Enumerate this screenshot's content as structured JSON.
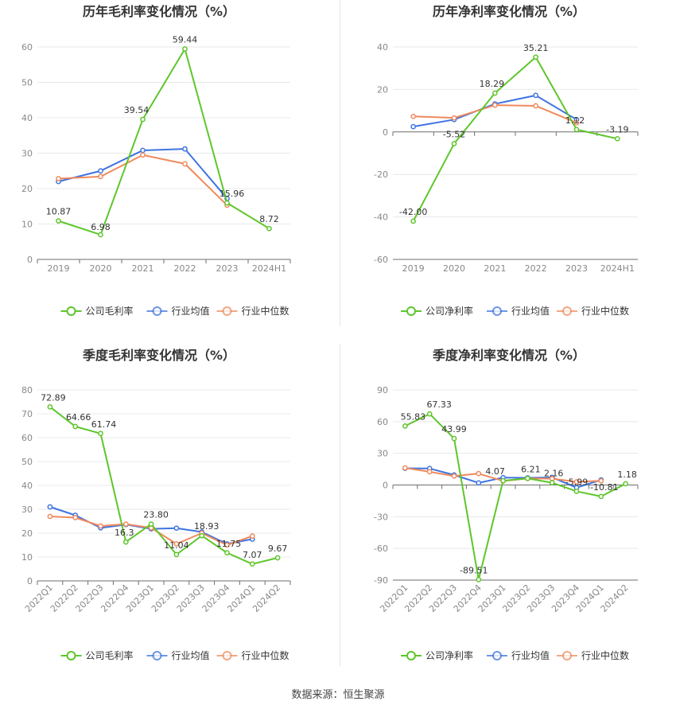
{
  "colors": {
    "company": "#5ec62b",
    "industry_avg": "#3f74e0",
    "industry_median": "#f08a5d",
    "grid": "#e8e8e8",
    "axis_text": "#888888"
  },
  "footer": {
    "label": "数据来源：",
    "value": "恒生聚源"
  },
  "chart_data": [
    {
      "type": "line",
      "title": "历年毛利率变化情况（%）",
      "categories": [
        "2019",
        "2020",
        "2021",
        "2022",
        "2023",
        "2024H1"
      ],
      "yticks": [
        "0",
        "10",
        "20",
        "30",
        "40",
        "50",
        "60"
      ],
      "ylim": [
        0,
        60
      ],
      "series": [
        {
          "name": "公司毛利率",
          "key": "company",
          "values": [
            10.87,
            6.98,
            39.54,
            59.44,
            15.96,
            8.72
          ],
          "labels": [
            "10.87",
            "6.98",
            "39.54",
            "59.44",
            "15.96",
            "8.72"
          ]
        },
        {
          "name": "行业均值",
          "key": "industry_avg",
          "values": [
            22.0,
            25.0,
            30.8,
            31.2,
            17.2,
            null
          ]
        },
        {
          "name": "行业中位数",
          "key": "industry_median",
          "values": [
            22.8,
            23.4,
            29.5,
            27.0,
            15.3,
            null
          ]
        }
      ]
    },
    {
      "type": "line",
      "title": "历年净利率变化情况（%）",
      "categories": [
        "2019",
        "2020",
        "2021",
        "2022",
        "2023",
        "2024H1"
      ],
      "yticks": [
        "-60",
        "-40",
        "-20",
        "0",
        "20",
        "40"
      ],
      "ylim": [
        -60,
        40
      ],
      "series": [
        {
          "name": "公司净利率",
          "key": "company",
          "values": [
            -42.0,
            -5.52,
            18.29,
            35.21,
            1.12,
            -3.19
          ],
          "labels": [
            "-42.00",
            "-5.52",
            "18.29",
            "35.21",
            "1.12",
            "-3.19"
          ]
        },
        {
          "name": "行业均值",
          "key": "industry_avg",
          "values": [
            2.5,
            5.8,
            13.2,
            17.2,
            5.8,
            null
          ]
        },
        {
          "name": "行业中位数",
          "key": "industry_median",
          "values": [
            7.3,
            6.6,
            12.6,
            12.3,
            4.3,
            null
          ]
        }
      ]
    },
    {
      "type": "line",
      "title": "季度毛利率变化情况（%）",
      "categories": [
        "2022Q1",
        "2022Q2",
        "2022Q3",
        "2022Q4",
        "2023Q1",
        "2023Q2",
        "2023Q3",
        "2023Q4",
        "2024Q1",
        "2024Q2"
      ],
      "yticks": [
        "0",
        "10",
        "20",
        "30",
        "40",
        "50",
        "60",
        "70",
        "80"
      ],
      "ylim": [
        0,
        80
      ],
      "series": [
        {
          "name": "公司毛利率",
          "key": "company",
          "values": [
            72.89,
            64.66,
            61.74,
            16.3,
            23.8,
            11.04,
            18.93,
            11.75,
            7.07,
            9.67
          ],
          "labels": [
            "72.89",
            "64.66",
            "61.74",
            "16.3",
            "23.80",
            "11.04",
            "18.93",
            "11.75",
            "7.07",
            "9.67"
          ]
        },
        {
          "name": "行业均值",
          "key": "industry_avg",
          "values": [
            31.0,
            27.5,
            22.2,
            23.6,
            21.8,
            22.1,
            20.5,
            15.5,
            17.5,
            null
          ]
        },
        {
          "name": "行业中位数",
          "key": "industry_median",
          "values": [
            27.0,
            26.5,
            23.0,
            23.8,
            22.2,
            15.5,
            20.0,
            15.0,
            18.8,
            null
          ]
        }
      ]
    },
    {
      "type": "line",
      "title": "季度净利率变化情况（%）",
      "categories": [
        "2022Q1",
        "2022Q2",
        "2022Q3",
        "2022Q4",
        "2023Q1",
        "2023Q2",
        "2023Q3",
        "2023Q4",
        "2024Q1",
        "2024Q2"
      ],
      "yticks": [
        "-90",
        "-60",
        "-30",
        "0",
        "30",
        "60",
        "90"
      ],
      "ylim": [
        -90,
        90
      ],
      "series": [
        {
          "name": "公司净利率",
          "key": "company",
          "values": [
            55.83,
            67.33,
            43.99,
            -89.51,
            4.07,
            6.21,
            2.16,
            -5.99,
            -10.81,
            1.18
          ],
          "labels": [
            "55.83",
            "67.33",
            "43.99",
            "-89.51",
            "4.07",
            "6.21",
            "2.16",
            "-5.99",
            "-10.81",
            "1.18"
          ]
        },
        {
          "name": "行业均值",
          "key": "industry_avg",
          "values": [
            15.8,
            15.6,
            9.5,
            2.0,
            7.0,
            6.8,
            7.2,
            -2.5,
            4.8,
            null
          ]
        },
        {
          "name": "行业中位数",
          "key": "industry_median",
          "values": [
            16.2,
            12.5,
            8.5,
            10.8,
            3.8,
            6.2,
            6.0,
            3.0,
            4.0,
            null
          ]
        }
      ]
    }
  ]
}
